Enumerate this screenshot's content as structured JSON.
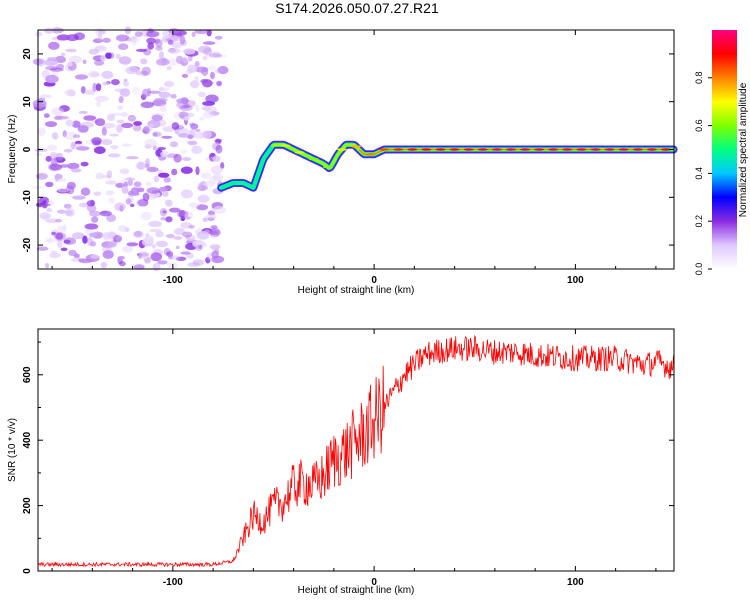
{
  "figure_title": "S174.2026.050.07.27.R21",
  "chart_data": [
    {
      "type": "heatmap",
      "panel": "spectrogram",
      "xlabel": "Height of straight line (km)",
      "ylabel": "Frequency (Hz)",
      "xlim": [
        -167,
        149
      ],
      "ylim": [
        -25,
        25
      ],
      "x_ticks": [
        -100,
        0,
        100
      ],
      "y_ticks": [
        -20,
        -10,
        0,
        10,
        20
      ],
      "colorbar": {
        "label": "Normalized spectral amplitude",
        "range": [
          0,
          1
        ],
        "ticks": [
          0.0,
          0.2,
          0.4,
          0.6,
          0.8
        ],
        "colormap": [
          "#ffffff",
          "#e0c8ff",
          "#8a2be2",
          "#0000ff",
          "#00c8ff",
          "#00ff80",
          "#80ff00",
          "#ffff00",
          "#ff8000",
          "#ff0000",
          "#ff0080"
        ]
      },
      "noise_region": {
        "x_from": -167,
        "x_to": -75,
        "freq_from": -25,
        "freq_to": 25,
        "amplitude": [
          0.0,
          0.15
        ]
      },
      "ridge": {
        "x": [
          -76,
          -70,
          -65,
          -60,
          -55,
          -50,
          -45,
          -40,
          -35,
          -30,
          -25,
          -22,
          -18,
          -14,
          -10,
          -5,
          0,
          5,
          10,
          20,
          40,
          60,
          80,
          100,
          120,
          140,
          149
        ],
        "frequency": [
          -8,
          -7,
          -7,
          -8,
          -2,
          1,
          1,
          0,
          -1,
          -2,
          -3,
          -4,
          -1,
          1,
          1,
          -1,
          -1,
          0,
          0,
          0,
          0,
          0,
          0,
          0,
          0,
          0,
          0
        ],
        "amplitude": [
          0.25,
          0.35,
          0.3,
          0.3,
          0.45,
          0.55,
          0.6,
          0.65,
          0.6,
          0.55,
          0.55,
          0.55,
          0.6,
          0.65,
          0.7,
          0.75,
          0.75,
          0.8,
          0.82,
          0.85,
          0.88,
          0.9,
          0.9,
          0.9,
          0.9,
          0.88,
          0.85
        ]
      }
    },
    {
      "type": "line",
      "panel": "snr",
      "xlabel": "Height of straight line (km)",
      "ylabel": "SNR (10 * v/v)",
      "xlim": [
        -167,
        149
      ],
      "ylim": [
        0,
        740
      ],
      "x_ticks": [
        -100,
        0,
        100
      ],
      "y_ticks": [
        0,
        200,
        400,
        600
      ],
      "color": "#ff0000",
      "noise_band": 30,
      "series": [
        {
          "name": "SNR",
          "x": [
            -167,
            -150,
            -120,
            -100,
            -80,
            -70,
            -65,
            -60,
            -55,
            -50,
            -45,
            -40,
            -35,
            -30,
            -25,
            -20,
            -15,
            -10,
            -5,
            0,
            5,
            10,
            15,
            20,
            25,
            30,
            40,
            50,
            60,
            70,
            80,
            100,
            120,
            135,
            140,
            145,
            149
          ],
          "y": [
            20,
            20,
            20,
            20,
            20,
            30,
            100,
            170,
            150,
            200,
            210,
            260,
            270,
            260,
            290,
            340,
            360,
            390,
            420,
            460,
            500,
            550,
            600,
            630,
            660,
            670,
            680,
            680,
            670,
            670,
            660,
            650,
            650,
            630,
            640,
            630,
            620
          ]
        }
      ]
    }
  ]
}
